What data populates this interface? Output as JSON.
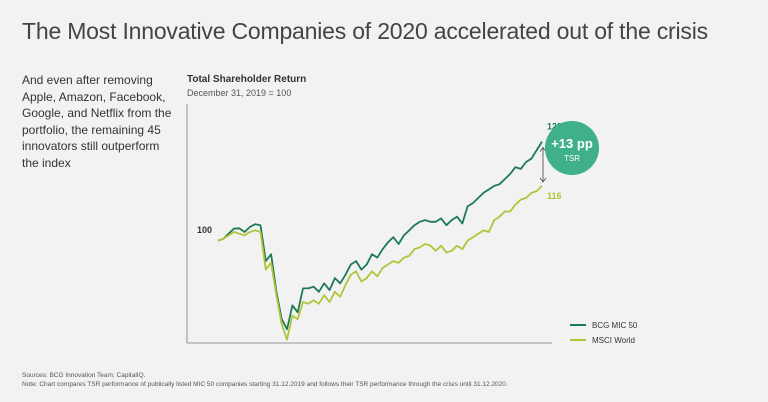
{
  "page": {
    "title": "The Most Innovative Companies of 2020 accelerated out of the crisis",
    "intro": "And even after removing Apple, Amazon, Facebook, Google, and Netflix from the portfolio, the remaining 45 innovators still outperform the index",
    "sources": "Sources: BCG Innovation Team; CapitalIQ.",
    "note": "Note: Chart compares TSR performance of publically listed MIC 50 companies starting 31.12.2019 and follows their TSR performance through the crisis until 31.12.2020."
  },
  "chart_data": {
    "type": "line",
    "title": "Total Shareholder Return",
    "subtitle": "December 31, 2019 = 100",
    "xlabel": "",
    "ylabel": "",
    "ylim": [
      70,
      140
    ],
    "grid": false,
    "legend_position": "bottom-right",
    "start_label": "100",
    "callout": {
      "value": "+13 pp",
      "label": "TSR"
    },
    "series": [
      {
        "name": "BCG MIC 50",
        "color": "#1e7a55",
        "end_label": "129",
        "values": [
          100,
          100.5,
          102,
          103.5,
          103.6,
          102.5,
          104,
          104.8,
          104.5,
          94,
          96,
          85,
          77,
          74,
          81,
          79,
          86,
          86,
          86.5,
          85,
          87.5,
          85.5,
          89,
          87.5,
          90,
          93,
          94,
          91.5,
          93,
          96,
          95,
          97.5,
          99.5,
          101,
          99,
          101.5,
          103,
          104.5,
          105.5,
          106,
          105.5,
          105.5,
          106.5,
          104.5,
          106,
          107,
          105,
          110,
          111,
          112.5,
          114,
          115,
          116,
          116.5,
          118,
          119.5,
          121.5,
          121,
          123,
          124,
          126.5,
          129
        ]
      },
      {
        "name": "MSCI World",
        "color": "#b1c43a",
        "end_label": "116",
        "values": [
          100,
          100.5,
          101.5,
          102.5,
          102,
          101.5,
          102.5,
          103,
          102.5,
          91.5,
          93.5,
          84,
          75.5,
          71,
          78,
          77,
          82,
          81.5,
          82.5,
          81.5,
          84,
          82,
          85,
          83.5,
          87,
          90,
          91,
          88,
          89,
          91,
          89.5,
          92,
          93,
          94,
          93.5,
          95,
          95.5,
          97.5,
          98,
          99,
          98.5,
          97,
          98.5,
          96.5,
          97,
          98.5,
          97.5,
          100,
          101,
          102,
          103,
          102.5,
          106,
          107,
          108.5,
          108.5,
          110.5,
          112,
          112.5,
          114,
          114.5,
          116
        ]
      }
    ]
  }
}
